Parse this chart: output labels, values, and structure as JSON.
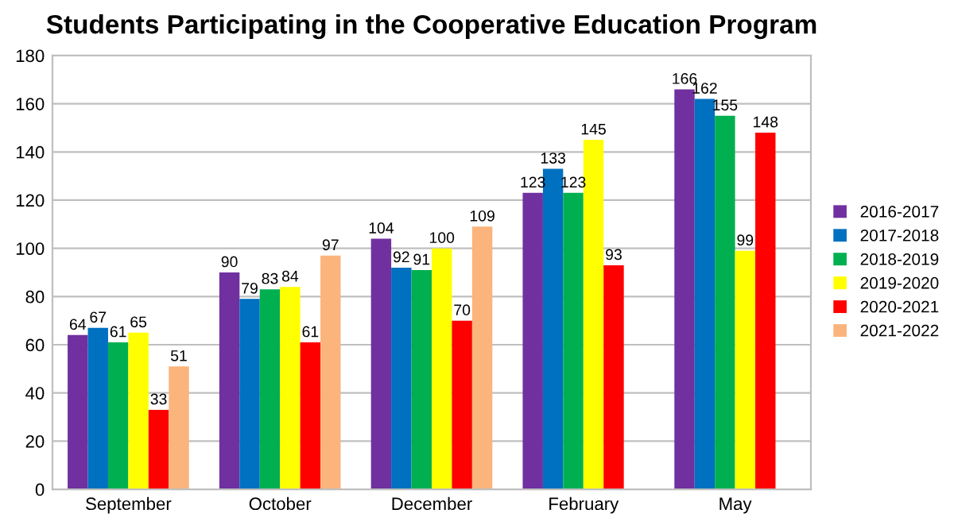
{
  "chart_data": {
    "type": "bar",
    "title": "Students Participating in the Cooperative Education Program",
    "categories": [
      "September",
      "October",
      "December",
      "February",
      "May"
    ],
    "series": [
      {
        "name": "2016-2017",
        "color": "#7030a0",
        "values": [
          64,
          90,
          104,
          123,
          166
        ]
      },
      {
        "name": "2017-2018",
        "color": "#0070c0",
        "values": [
          67,
          79,
          92,
          133,
          162
        ]
      },
      {
        "name": "2018-2019",
        "color": "#00b050",
        "values": [
          61,
          83,
          91,
          123,
          155
        ]
      },
      {
        "name": "2019-2020",
        "color": "#ffff00",
        "values": [
          65,
          84,
          100,
          145,
          99
        ]
      },
      {
        "name": "2020-2021",
        "color": "#ff0000",
        "values": [
          33,
          61,
          70,
          93,
          148
        ]
      },
      {
        "name": "2021-2022",
        "color": "#fbb47c",
        "values": [
          51,
          97,
          109,
          null,
          null
        ]
      }
    ],
    "ylim": [
      0,
      180
    ],
    "yticks": [
      0,
      20,
      40,
      60,
      80,
      100,
      120,
      140,
      160,
      180
    ],
    "grid": "y",
    "legend": "right",
    "data_labels": true
  }
}
